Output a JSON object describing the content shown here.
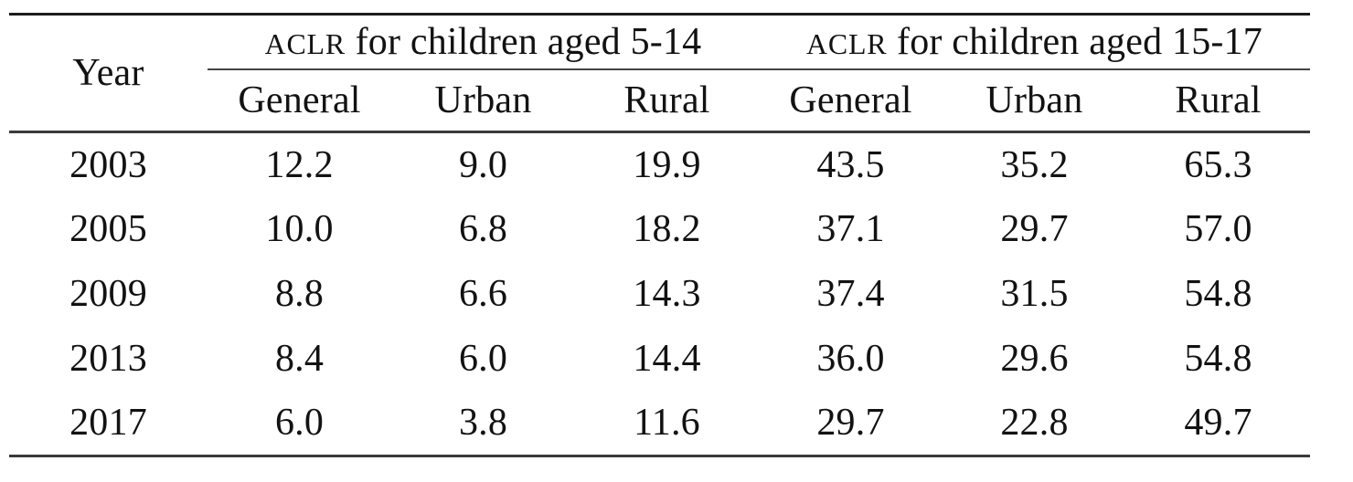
{
  "table": {
    "year_header": "Year",
    "groups": [
      {
        "acronym": "ACLR",
        "label_rest": " for children aged 5-14",
        "columns": [
          "General",
          "Urban",
          "Rural"
        ]
      },
      {
        "acronym": "ACLR",
        "label_rest": " for children aged 15-17",
        "columns": [
          "General",
          "Urban",
          "Rural"
        ]
      }
    ],
    "rows": [
      {
        "year": "2003",
        "values": [
          "12.2",
          "9.0",
          "19.9",
          "43.5",
          "35.2",
          "65.3"
        ]
      },
      {
        "year": "2005",
        "values": [
          "10.0",
          "6.8",
          "18.2",
          "37.1",
          "29.7",
          "57.0"
        ]
      },
      {
        "year": "2009",
        "values": [
          "8.8",
          "6.6",
          "14.3",
          "37.4",
          "31.5",
          "54.8"
        ]
      },
      {
        "year": "2013",
        "values": [
          "8.4",
          "6.0",
          "14.4",
          "36.0",
          "29.6",
          "54.8"
        ]
      },
      {
        "year": "2017",
        "values": [
          "6.0",
          "3.8",
          "11.6",
          "29.7",
          "22.8",
          "49.7"
        ]
      }
    ]
  },
  "colors": {
    "text": "#121212",
    "rule_heavy": "#1c1c1c",
    "rule_medium": "#3a3a3a",
    "rule_light": "#444444",
    "background": "#ffffff"
  },
  "chart_data": {
    "type": "table",
    "row_label_column": "Year",
    "column_groups": [
      {
        "label": "ACLR for children aged 5-14",
        "columns": [
          "General",
          "Urban",
          "Rural"
        ]
      },
      {
        "label": "ACLR for children aged 15-17",
        "columns": [
          "General",
          "Urban",
          "Rural"
        ]
      }
    ],
    "rows": [
      {
        "year": 2003,
        "aged_5_14": {
          "general": 12.2,
          "urban": 9.0,
          "rural": 19.9
        },
        "aged_15_17": {
          "general": 43.5,
          "urban": 35.2,
          "rural": 65.3
        }
      },
      {
        "year": 2005,
        "aged_5_14": {
          "general": 10.0,
          "urban": 6.8,
          "rural": 18.2
        },
        "aged_15_17": {
          "general": 37.1,
          "urban": 29.7,
          "rural": 57.0
        }
      },
      {
        "year": 2009,
        "aged_5_14": {
          "general": 8.8,
          "urban": 6.6,
          "rural": 14.3
        },
        "aged_15_17": {
          "general": 37.4,
          "urban": 31.5,
          "rural": 54.8
        }
      },
      {
        "year": 2013,
        "aged_5_14": {
          "general": 8.4,
          "urban": 6.0,
          "rural": 14.4
        },
        "aged_15_17": {
          "general": 36.0,
          "urban": 29.6,
          "rural": 54.8
        }
      },
      {
        "year": 2017,
        "aged_5_14": {
          "general": 6.0,
          "urban": 3.8,
          "rural": 11.6
        },
        "aged_15_17": {
          "general": 29.7,
          "urban": 22.8,
          "rural": 49.7
        }
      }
    ]
  }
}
